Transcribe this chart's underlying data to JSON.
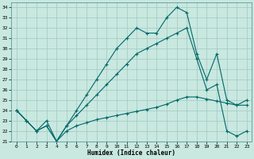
{
  "xlabel": "Humidex (Indice chaleur)",
  "xlim": [
    -0.5,
    23.5
  ],
  "ylim": [
    21,
    34.5
  ],
  "yticks": [
    21,
    22,
    23,
    24,
    25,
    26,
    27,
    28,
    29,
    30,
    31,
    32,
    33,
    34
  ],
  "xticks": [
    0,
    1,
    2,
    3,
    4,
    5,
    6,
    7,
    8,
    9,
    10,
    11,
    12,
    13,
    14,
    15,
    16,
    17,
    18,
    19,
    20,
    21,
    22,
    23
  ],
  "bg_color": "#c8e8e0",
  "grid_color": "#a0c8c0",
  "line_color": "#006868",
  "line1_x": [
    0,
    1,
    2,
    3,
    4,
    5,
    6,
    7,
    8,
    9,
    10,
    11,
    12,
    13,
    14,
    15,
    16,
    17,
    18,
    19,
    20,
    21,
    22,
    23
  ],
  "line1_y": [
    24,
    23,
    22,
    22.5,
    21,
    22.5,
    24,
    25.5,
    27,
    28.5,
    30,
    31,
    32,
    31.5,
    31.5,
    33,
    34,
    33.5,
    29.5,
    27,
    29.5,
    25,
    24.5,
    25
  ],
  "line2_x": [
    0,
    1,
    2,
    3,
    4,
    5,
    6,
    7,
    8,
    9,
    10,
    11,
    12,
    13,
    14,
    15,
    16,
    17,
    18,
    19,
    20,
    21,
    22,
    23
  ],
  "line2_y": [
    24,
    23,
    22,
    22.5,
    21,
    22.5,
    23.5,
    24.5,
    25.5,
    26.5,
    27.5,
    28.5,
    29.5,
    30,
    30.5,
    31,
    31.5,
    32,
    29,
    26,
    26.5,
    22,
    21.5,
    22
  ],
  "line3_x": [
    0,
    1,
    2,
    3,
    4,
    5,
    6,
    7,
    8,
    9,
    10,
    11,
    12,
    13,
    14,
    15,
    16,
    17,
    18,
    19,
    20,
    21,
    22,
    23
  ],
  "line3_y": [
    24,
    23,
    22,
    23,
    21,
    22,
    22.5,
    22.8,
    23.1,
    23.3,
    23.5,
    23.7,
    23.9,
    24.1,
    24.3,
    24.6,
    25,
    25.3,
    25.3,
    25.1,
    24.9,
    24.7,
    24.5,
    24.5
  ]
}
